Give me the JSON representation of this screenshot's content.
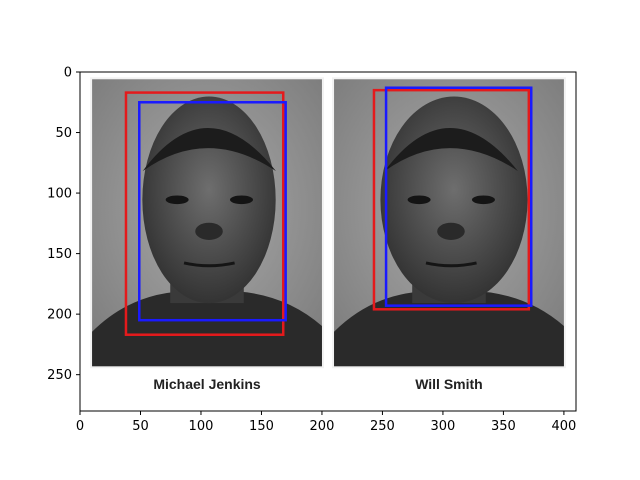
{
  "axes": {
    "x_ticks": [
      0,
      50,
      100,
      150,
      200,
      250,
      300,
      350,
      400
    ],
    "y_ticks": [
      0,
      50,
      100,
      150,
      200,
      250
    ],
    "xlim": [
      0,
      410
    ],
    "ylim": [
      280,
      0
    ]
  },
  "photos": [
    {
      "caption": "Michael Jenkins",
      "image_extent_data": [
        10,
        200,
        0,
        243
      ],
      "boxes": [
        {
          "color": "#e41a1c",
          "x0": 38,
          "y0": 17,
          "x1": 168,
          "y1": 217
        },
        {
          "color": "#1a1aff",
          "x0": 49,
          "y0": 25,
          "x1": 170,
          "y1": 205
        }
      ]
    },
    {
      "caption": "Will Smith",
      "image_extent_data": [
        210,
        400,
        0,
        243
      ],
      "boxes": [
        {
          "color": "#e41a1c",
          "x0": 243,
          "y0": 15,
          "x1": 371,
          "y1": 196
        },
        {
          "color": "#1a1aff",
          "x0": 253,
          "y0": 13,
          "x1": 373,
          "y1": 193
        }
      ]
    }
  ],
  "colors": {
    "face_red": "#e41a1c",
    "face_blue": "#1a1aff",
    "axis": "#000000"
  }
}
